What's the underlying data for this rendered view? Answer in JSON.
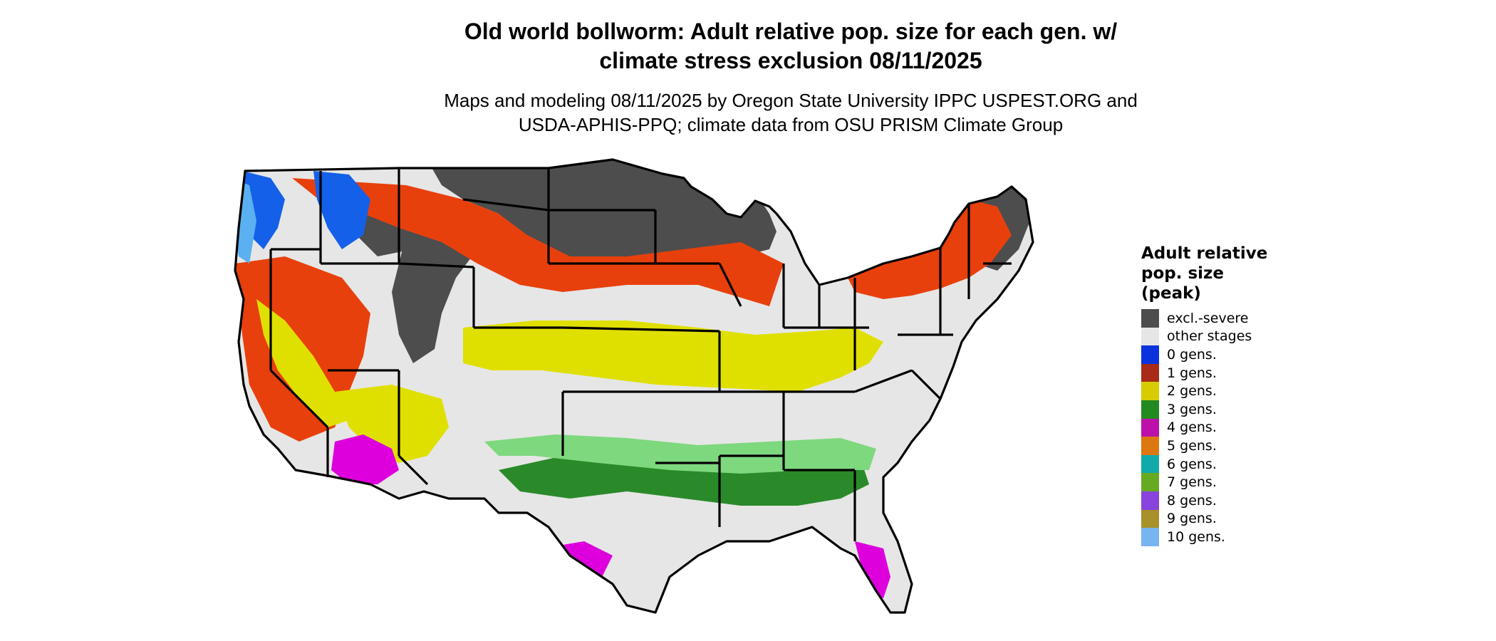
{
  "title_lines": [
    "Old world bollworm: Adult relative pop. size for each gen. w/",
    "climate stress exclusion 08/11/2025"
  ],
  "subtitle_lines": [
    "Maps and modeling 08/11/2025 by Oregon State University IPPC USPEST.ORG and",
    "USDA-APHIS-PPQ; climate data from OSU PRISM Climate Group"
  ],
  "legend": {
    "title_lines": [
      "Adult relative",
      "pop. size",
      "(peak)"
    ],
    "items": [
      {
        "label": "excl.-severe",
        "color": "#4d4d4d"
      },
      {
        "label": "other stages",
        "color": "#e6e6e6"
      },
      {
        "label": "0 gens.",
        "color": "#0a33dd"
      },
      {
        "label": "1 gens.",
        "color": "#a82a18"
      },
      {
        "label": "2 gens.",
        "color": "#d6cc00"
      },
      {
        "label": "3 gens.",
        "color": "#238a22"
      },
      {
        "label": "4 gens.",
        "color": "#bb11aa"
      },
      {
        "label": "5 gens.",
        "color": "#dd7711"
      },
      {
        "label": "6 gens.",
        "color": "#11aaaa"
      },
      {
        "label": "7 gens.",
        "color": "#66aa22"
      },
      {
        "label": "8 gens.",
        "color": "#8844dd"
      },
      {
        "label": "9 gens.",
        "color": "#a8902a"
      },
      {
        "label": "10 gens.",
        "color": "#77b4f0"
      }
    ]
  },
  "map_colors": {
    "background": "#e6e6e6",
    "excluded": "#4d4d4d",
    "one_gen": "#e8400c",
    "two_gen": "#e0e000",
    "three_gen": "#2a8a2a",
    "three_gen_light": "#7ed87e",
    "four_gen": "#dd00dd",
    "zero_gen": "#1560e8",
    "ten_gen": "#5ab0f0",
    "border": "#000000"
  }
}
